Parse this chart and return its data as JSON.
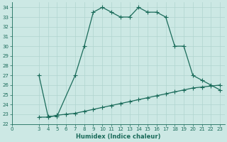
{
  "xlabel": "Humidex (Indice chaleur)",
  "bg_color": "#cce8e4",
  "grid_color": "#b0d4cf",
  "line_color": "#1a6b5a",
  "upper_x": [
    3,
    4,
    5,
    7,
    8,
    9,
    10,
    11,
    12,
    13,
    14,
    15,
    16,
    17,
    18,
    19,
    20,
    21,
    22,
    23
  ],
  "upper_y": [
    27.0,
    22.8,
    22.8,
    27.0,
    30.0,
    33.5,
    34.0,
    33.5,
    33.0,
    33.0,
    34.0,
    33.5,
    33.5,
    33.0,
    30.0,
    30.0,
    27.0,
    26.5,
    26.0,
    25.5
  ],
  "lower_x": [
    3,
    4,
    5,
    6,
    7,
    8,
    9,
    10,
    11,
    12,
    13,
    14,
    15,
    16,
    17,
    18,
    19,
    20,
    21,
    22,
    23
  ],
  "lower_y": [
    22.7,
    22.7,
    22.9,
    23.0,
    23.1,
    23.3,
    23.5,
    23.7,
    23.9,
    24.1,
    24.3,
    24.5,
    24.7,
    24.9,
    25.1,
    25.3,
    25.5,
    25.7,
    25.8,
    25.9,
    26.0
  ],
  "xlim": [
    0,
    23.5
  ],
  "ylim": [
    22,
    34.5
  ],
  "xticks": [
    0,
    3,
    4,
    5,
    6,
    7,
    8,
    9,
    10,
    11,
    12,
    13,
    14,
    15,
    16,
    17,
    18,
    19,
    20,
    21,
    22,
    23
  ],
  "yticks": [
    22,
    23,
    24,
    25,
    26,
    27,
    28,
    29,
    30,
    31,
    32,
    33,
    34
  ],
  "marker": "+",
  "markersize": 4,
  "linewidth": 0.9
}
